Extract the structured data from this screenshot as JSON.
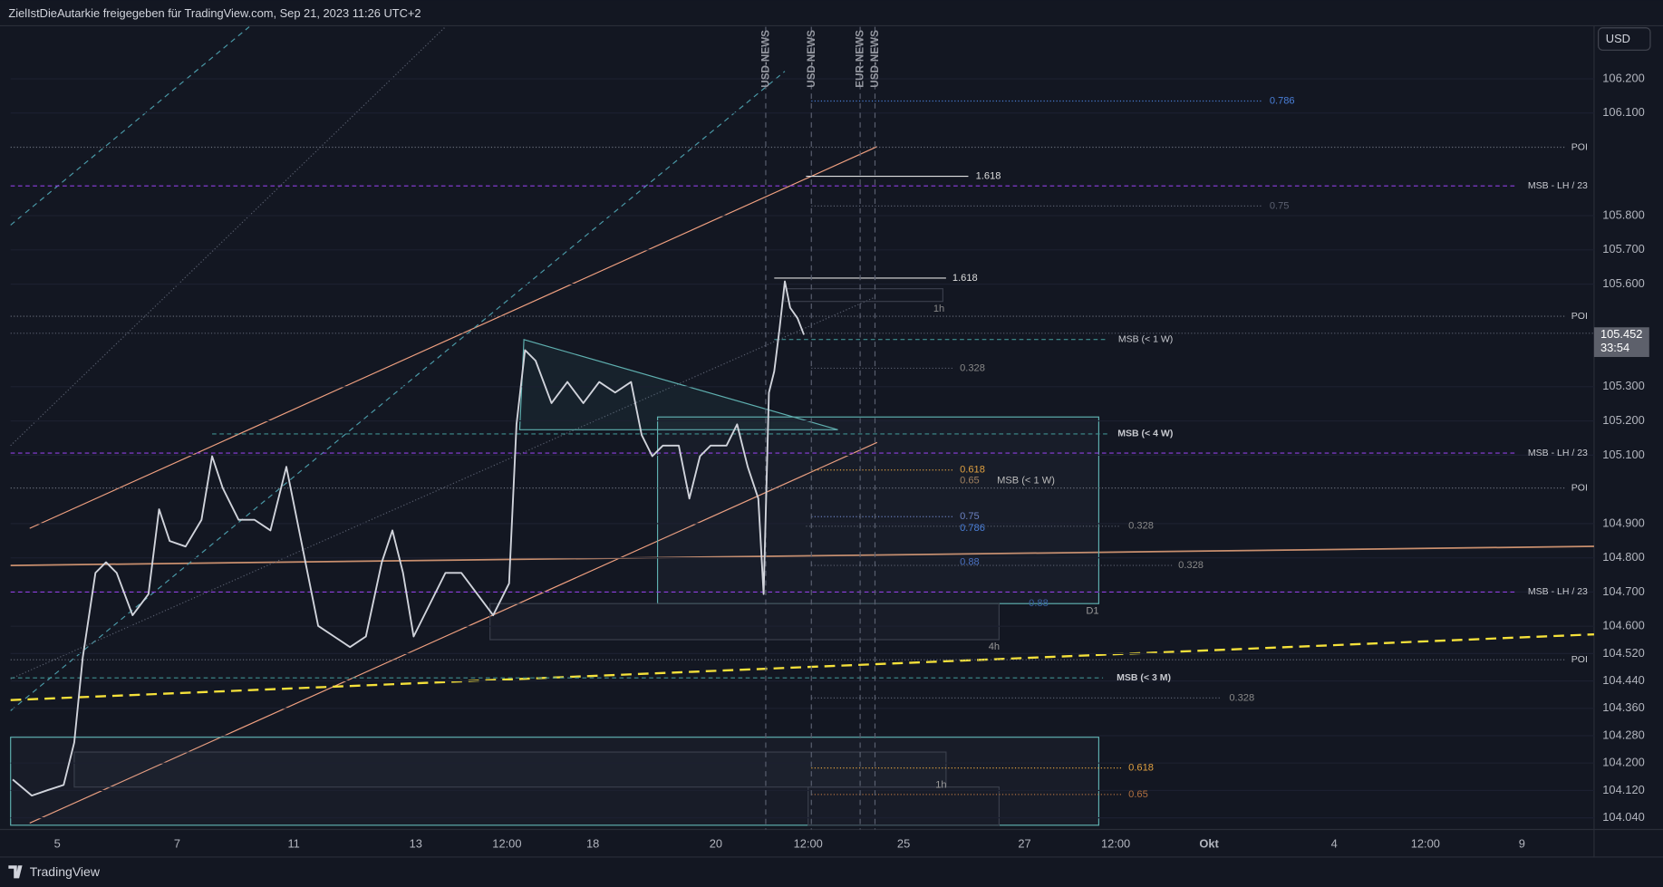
{
  "header": {
    "title": "ZielIstDieAutarkie freigegeben für TradingView.com, Sep 21, 2023 11:26 UTC+2",
    "currency": "USD"
  },
  "chart_data": {
    "type": "line",
    "color": "#d1d4dc",
    "values": [
      104.152,
      104.105,
      104.121,
      104.136,
      104.26,
      104.508,
      104.756,
      104.787,
      104.756,
      104.632,
      104.694,
      104.942,
      104.849,
      104.833,
      104.911,
      105.097,
      105.004,
      104.911,
      104.911,
      104.88,
      105.066,
      104.911,
      104.756,
      104.601,
      104.57,
      104.539,
      104.57,
      104.787,
      104.88,
      104.756,
      104.57,
      104.663,
      104.756,
      104.756,
      104.694,
      104.632,
      104.725,
      105.19,
      105.407,
      105.376,
      105.252,
      105.314,
      105.252,
      105.314,
      105.283,
      105.314,
      105.159,
      105.097,
      105.128,
      105.128,
      104.973,
      105.097,
      105.128,
      105.128,
      105.19,
      105.066,
      104.973,
      104.694,
      105.283,
      105.345,
      105.469,
      105.608,
      105.531,
      105.5,
      105.452
    ],
    "ylim": [
      104.006,
      106.352
    ],
    "yticks": [
      {
        "value": 106.2,
        "label": "106.200"
      },
      {
        "value": 106.1,
        "label": "106.100"
      },
      {
        "value": 105.8,
        "label": "105.800"
      },
      {
        "value": 105.7,
        "label": "105.700"
      },
      {
        "value": 105.6,
        "label": "105.600"
      },
      {
        "value": 105.3,
        "label": "105.300"
      },
      {
        "value": 105.2,
        "label": "105.200"
      },
      {
        "value": 105.1,
        "label": "105.100"
      },
      {
        "value": 104.9,
        "label": "104.900"
      },
      {
        "value": 104.8,
        "label": "104.800"
      },
      {
        "value": 104.7,
        "label": "104.700"
      },
      {
        "value": 104.6,
        "label": "104.600"
      },
      {
        "value": 104.52,
        "label": "104.520"
      },
      {
        "value": 104.44,
        "label": "104.440"
      },
      {
        "value": 104.36,
        "label": "104.360"
      },
      {
        "value": 104.28,
        "label": "104.280"
      },
      {
        "value": 104.2,
        "label": "104.200"
      },
      {
        "value": 104.12,
        "label": "104.120"
      },
      {
        "value": 104.04,
        "label": "104.040"
      }
    ],
    "grid": true,
    "x_labels": [
      "5",
      "7",
      "11",
      "13",
      "12:00",
      "18",
      "20",
      "12:00",
      "25",
      "27",
      "12:00",
      "Okt",
      "4",
      "12:00",
      "9"
    ],
    "price_tag": {
      "value": 105.452,
      "label": "105.452",
      "countdown": "33:54"
    },
    "levels": [
      {
        "label": "POI",
        "value": 106.0,
        "color": "#6a6f7c"
      },
      {
        "label": "MSB - LH / 23",
        "value": 105.887,
        "color": "#8e3fe0"
      },
      {
        "label": "POI",
        "value": 105.506,
        "color": "#6a6f7c"
      },
      {
        "label": "MSB (< 1 W)",
        "value": 105.438,
        "color": "#3f8f8f"
      },
      {
        "label": "MSB (< 4 W)",
        "value": 105.162,
        "color": "#3f8f8f"
      },
      {
        "label": "MSB - LH / 23",
        "value": 105.106,
        "color": "#8e3fe0"
      },
      {
        "label": "POI",
        "value": 105.004,
        "color": "#6a6f7c"
      },
      {
        "label": "MSB - LH / 23",
        "value": 104.7,
        "color": "#8e3fe0"
      },
      {
        "label": "POI",
        "value": 104.502,
        "color": "#6a6f7c"
      },
      {
        "label": "MSB (< 3 M)",
        "value": 104.449,
        "color": "#3f8f8f"
      }
    ],
    "news": [
      "USD-NEWS",
      "USD-NEWS",
      "EUR-NEWS",
      "USD-NEWS"
    ],
    "annotations": [
      "0.786",
      "1.618",
      "0.75",
      "1.618",
      "1h",
      "0.328",
      "0.618",
      "0.65",
      "MSB (< 1 W)",
      "0.75",
      "0.786",
      "0.328",
      "0.88",
      "0.328",
      "0.88",
      "D1",
      "4h",
      "0.328",
      "0.618",
      "1h",
      "0.65"
    ]
  },
  "footer": {
    "brand": "TradingView"
  }
}
